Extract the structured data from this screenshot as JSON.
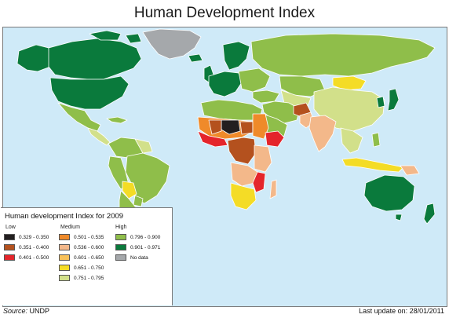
{
  "title": "Human Development Index",
  "legend": {
    "title": "Human development Index for 2009",
    "groups": {
      "low": "Low",
      "medium": "Medium",
      "high": "High"
    },
    "items": [
      {
        "range": "0.329 - 0.350",
        "color": "#231f20"
      },
      {
        "range": "0.351 - 0.400",
        "color": "#b4511e"
      },
      {
        "range": "0.401 - 0.500",
        "color": "#e4252b"
      },
      {
        "range": "0.501 - 0.535",
        "color": "#ef8a2a"
      },
      {
        "range": "0.536 - 0.600",
        "color": "#f3b88a"
      },
      {
        "range": "0.601 - 0.650",
        "color": "#f8c15a"
      },
      {
        "range": "0.651 - 0.750",
        "color": "#f4dc26"
      },
      {
        "range": "0.751 - 0.795",
        "color": "#d2e08a"
      },
      {
        "range": "0.796 - 0.900",
        "color": "#8fbe4a"
      },
      {
        "range": "0.901 - 0.971",
        "color": "#0a7a3c"
      },
      {
        "range": "No data",
        "color": "#a5a8ab"
      }
    ]
  },
  "source_label": "Source:",
  "source_value": "UNDP",
  "last_update": "Last update on: 28/01/2011",
  "colors": {
    "ocean": "#cfeaf8",
    "border": "#ffffff"
  }
}
